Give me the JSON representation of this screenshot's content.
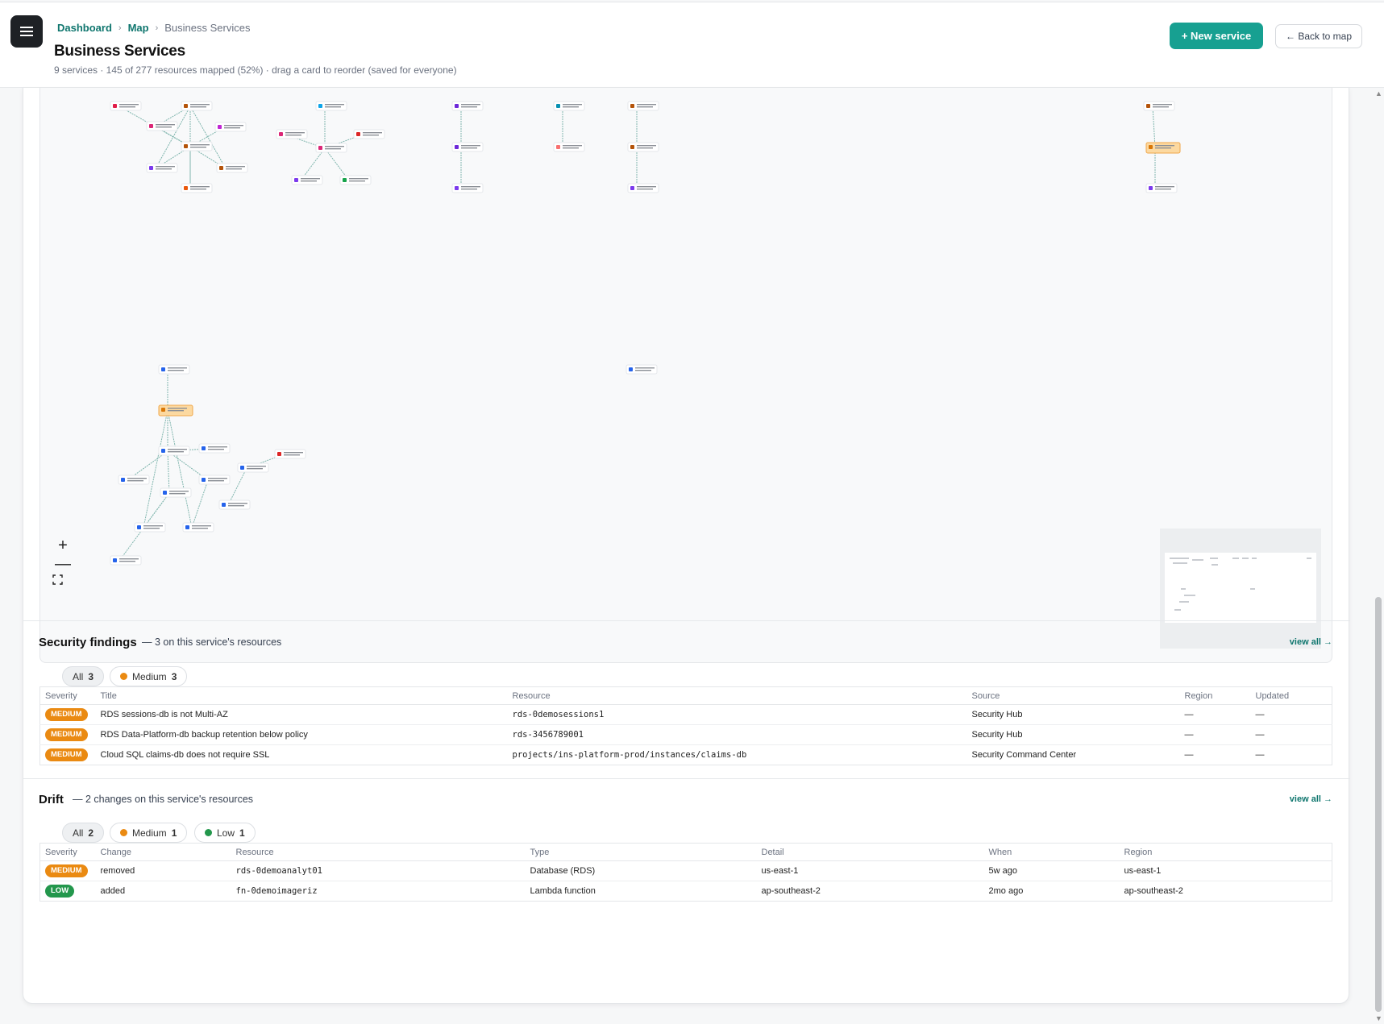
{
  "header": {
    "breadcrumb": [
      "Dashboard",
      "Map",
      "Business Services"
    ],
    "title": "Business Services",
    "subtitle": "9 services · 145 of 277 resources mapped (52%) · drag a card to reorder (saved for everyone)",
    "new_service_label": "+ New service",
    "back_label": "← Back to map"
  },
  "map": {
    "zoom_in": "+",
    "zoom_out": "—",
    "fit_icon": "fit-view-icon"
  },
  "security": {
    "title": "Security findings",
    "desc": "— 3 on this service's resources",
    "view_all": "view all →",
    "filters": [
      {
        "label": "All",
        "count": "3",
        "color": ""
      },
      {
        "label": "Medium",
        "count": "3",
        "color": "#ea8a12"
      }
    ],
    "columns": [
      "Severity",
      "Title",
      "Resource",
      "Source",
      "Region",
      "Updated"
    ],
    "rows": [
      {
        "severity": "MEDIUM",
        "title": "RDS sessions-db is not Multi-AZ",
        "resource": "rds-0demosessions1",
        "source": "Security Hub",
        "region": "—",
        "updated": "—"
      },
      {
        "severity": "MEDIUM",
        "title": "RDS Data-Platform-db backup retention below policy",
        "resource": "rds-3456789001",
        "source": "Security Hub",
        "region": "—",
        "updated": "—"
      },
      {
        "severity": "MEDIUM",
        "title": "Cloud SQL claims-db does not require SSL",
        "resource": "projects/ins-platform-prod/instances/claims-db",
        "source": "Security Command Center",
        "region": "—",
        "updated": "—"
      }
    ]
  },
  "drift": {
    "title": "Drift",
    "desc": "— 2 changes on this service's resources",
    "view_all": "view all →",
    "filters": [
      {
        "label": "All",
        "count": "2",
        "color": ""
      },
      {
        "label": "Medium",
        "count": "1",
        "color": "#ea8a12"
      },
      {
        "label": "Low",
        "count": "1",
        "color": "#23974c"
      }
    ],
    "columns": [
      "Severity",
      "Change",
      "Resource",
      "Type",
      "Detail",
      "When",
      "Region"
    ],
    "rows": [
      {
        "severity": "MEDIUM",
        "level": "medium",
        "change": "removed",
        "resource": "rds-0demoanalyt01",
        "type": "Database (RDS)",
        "detail": "us-east-1",
        "when": "5w ago",
        "region": "us-east-1"
      },
      {
        "severity": "LOW",
        "level": "low",
        "change": "added",
        "resource": "fn-0demoimageriz",
        "type": "Lambda function",
        "detail": "ap-southeast-2",
        "when": "2mo ago",
        "region": "ap-southeast-2"
      }
    ]
  }
}
